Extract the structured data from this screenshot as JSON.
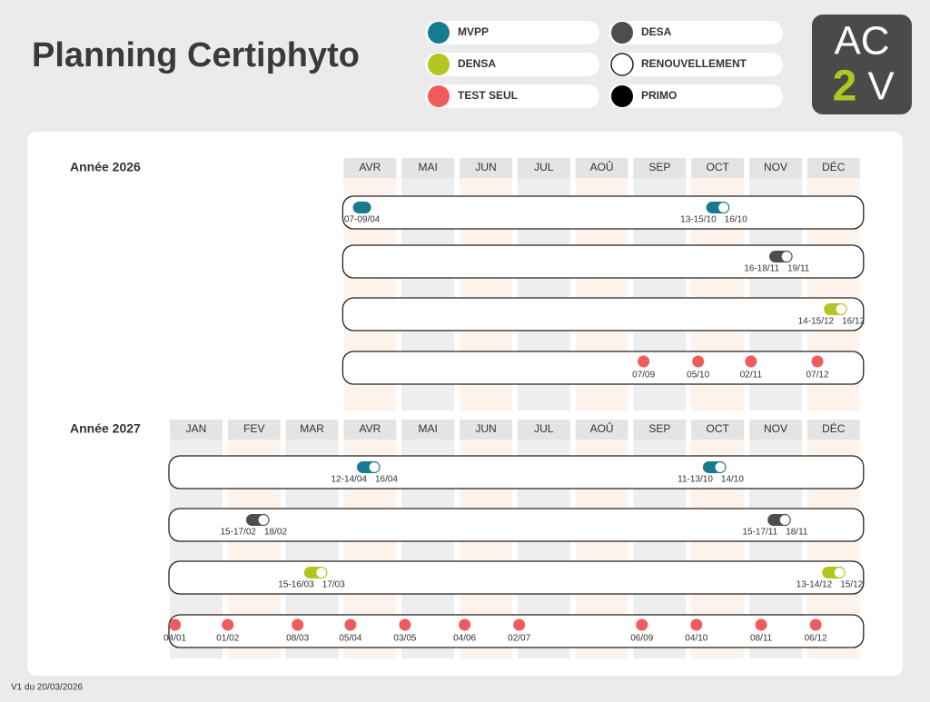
{
  "header": {
    "title": "Planning Certiphyto"
  },
  "legend": [
    {
      "label": "MVPP",
      "color": "#177b8f"
    },
    {
      "label": "DENSA",
      "color": "#b3c61f"
    },
    {
      "label": "TEST SEUL",
      "color": "#f35a5a"
    },
    {
      "label": "DESA",
      "color": "#4d4d4d"
    },
    {
      "label": "RENOUVELLEMENT",
      "color": "#ffffff"
    },
    {
      "label": "PRIMO",
      "color": "#000000"
    }
  ],
  "logo": {
    "top": "AC",
    "bottom_left": "2",
    "bottom_right": "V"
  },
  "years": [
    {
      "title": "Année 2026",
      "months": [
        "AVR",
        "MAI",
        "JUN",
        "JUL",
        "AOÛ",
        "SEP",
        "OCT",
        "NOV",
        "DÉC"
      ],
      "rows": [
        {
          "kind": "MVPP",
          "events": [
            {
              "date": "07-09/04"
            },
            {
              "date": "13-15/10",
              "renewal": "16/10"
            }
          ]
        },
        {
          "kind": "DESA",
          "events": [
            {
              "date": "16-18/11",
              "renewal": "19/11"
            }
          ]
        },
        {
          "kind": "DENSA",
          "events": [
            {
              "date": "14-15/12",
              "renewal": "16/12"
            }
          ]
        },
        {
          "kind": "TEST SEUL",
          "events": [
            {
              "date": "07/09"
            },
            {
              "date": "05/10"
            },
            {
              "date": "02/11"
            },
            {
              "date": "07/12"
            }
          ]
        }
      ]
    },
    {
      "title": "Année 2027",
      "months": [
        "JAN",
        "FEV",
        "MAR",
        "AVR",
        "MAI",
        "JUN",
        "JUL",
        "AOÛ",
        "SEP",
        "OCT",
        "NOV",
        "DÉC"
      ],
      "rows": [
        {
          "kind": "MVPP",
          "events": [
            {
              "date": "12-14/04",
              "renewal": "16/04"
            },
            {
              "date": "11-13/10",
              "renewal": "14/10"
            }
          ]
        },
        {
          "kind": "DESA",
          "events": [
            {
              "date": "15-17/02",
              "renewal": "18/02"
            },
            {
              "date": "15-17/11",
              "renewal": "18/11"
            }
          ]
        },
        {
          "kind": "DENSA",
          "events": [
            {
              "date": "15-16/03",
              "renewal": "17/03"
            },
            {
              "date": "13-14/12",
              "renewal": "15/12"
            }
          ]
        },
        {
          "kind": "TEST SEUL",
          "events": [
            {
              "date": "04/01"
            },
            {
              "date": "01/02"
            },
            {
              "date": "08/03"
            },
            {
              "date": "05/04"
            },
            {
              "date": "03/05"
            },
            {
              "date": "04/06"
            },
            {
              "date": "02/07"
            },
            {
              "date": "06/09"
            },
            {
              "date": "04/10"
            },
            {
              "date": "08/11"
            },
            {
              "date": "06/12"
            }
          ]
        }
      ]
    }
  ],
  "footer": "V1 du 20/03/2026"
}
